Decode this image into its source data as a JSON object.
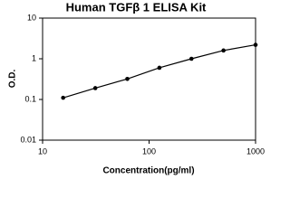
{
  "chart_data": {
    "type": "line",
    "title": "Human TGFβ 1 ELISA Kit",
    "x_label": "Concentration(pg/ml)",
    "y_label": "O.D.",
    "xscale": "log",
    "yscale": "log",
    "xlim": [
      10,
      1000
    ],
    "xticks": [
      10,
      100,
      1000
    ],
    "ylim": [
      0.01,
      10
    ],
    "yticks": [
      0.01,
      0.1,
      1,
      10
    ],
    "x": [
      15.6,
      31.25,
      62.5,
      125,
      250,
      500,
      1000
    ],
    "series": [
      {
        "color": "#000000",
        "values": [
          0.11,
          0.19,
          0.32,
          0.6,
          1.0,
          1.6,
          2.2
        ]
      }
    ]
  }
}
